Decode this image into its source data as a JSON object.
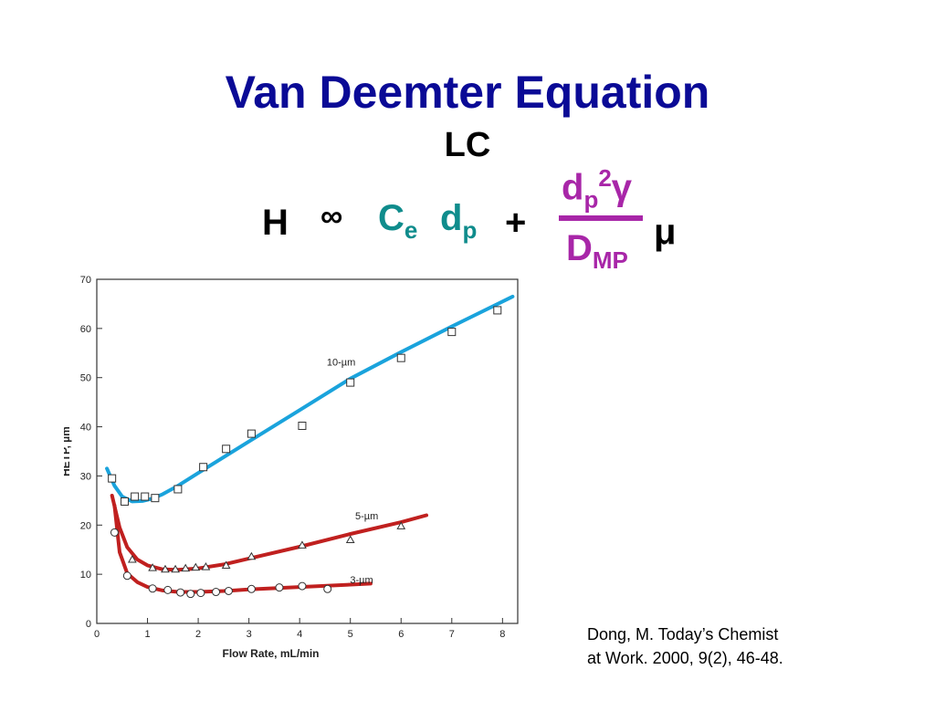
{
  "slide": {
    "title": "Van Deemter Equation",
    "subtitle": "LC",
    "equation": {
      "H": "H",
      "prop": "∞",
      "C": "C",
      "C_sub": "e",
      "d": "d",
      "d_sub": "p",
      "plus": "+",
      "num_d": "d",
      "num_sub": "p",
      "num_sup": "2",
      "num_gamma": "γ",
      "den_D": "D",
      "den_sub": "MP",
      "mu": "μ"
    },
    "citation_line1": "Dong, M.  Today’s Chemist",
    "citation_line2": "at Work. 2000, 9(2), 46-48."
  },
  "colors": {
    "title": "#0a0a96",
    "teal": "#0f8c8c",
    "magenta": "#a826a8",
    "line_10um": "#1aa3dc",
    "line_5um_3um": "#c0201f"
  },
  "chart_data": {
    "type": "line",
    "xlabel": "Flow Rate, mL/min",
    "ylabel": "HETP, µm",
    "xlim": [
      0,
      8.3
    ],
    "ylim": [
      0,
      70
    ],
    "x_ticks": [
      0,
      1,
      2,
      3,
      4,
      5,
      6,
      7,
      8
    ],
    "y_ticks": [
      0,
      10,
      20,
      30,
      40,
      50,
      60,
      70
    ],
    "grid": false,
    "legend": "inline labels",
    "series": [
      {
        "name": "10-µm",
        "color": "#1aa3dc",
        "marker": "square",
        "points": {
          "x": [
            0.3,
            0.55,
            0.75,
            0.95,
            1.15,
            1.6,
            2.1,
            2.55,
            3.05,
            4.05,
            5.0,
            6.0,
            7.0,
            7.9
          ],
          "y": [
            29.5,
            24.8,
            25.8,
            25.8,
            25.5,
            27.3,
            31.8,
            35.5,
            38.6,
            40.2,
            49.0,
            54.0,
            59.3,
            63.7
          ]
        },
        "curve": {
          "x": [
            0.2,
            0.35,
            0.5,
            0.7,
            0.9,
            1.1,
            1.3,
            1.6,
            2.0,
            3.0,
            4.0,
            5.0,
            6.0,
            7.0,
            8.2
          ],
          "y": [
            31.5,
            28.0,
            25.8,
            24.8,
            24.9,
            25.4,
            26.3,
            28.0,
            30.6,
            37.0,
            43.4,
            49.8,
            55.2,
            60.4,
            66.5
          ]
        }
      },
      {
        "name": "5-µm",
        "color": "#c0201f",
        "marker": "triangle",
        "points": {
          "x": [
            0.7,
            1.1,
            1.35,
            1.55,
            1.75,
            1.95,
            2.15,
            2.55,
            3.05,
            4.05,
            5.0,
            6.0
          ],
          "y": [
            13.0,
            11.3,
            11.0,
            11.0,
            11.2,
            11.4,
            11.5,
            11.8,
            13.6,
            15.9,
            17.0,
            19.8
          ]
        },
        "curve": {
          "x": [
            0.3,
            0.45,
            0.6,
            0.8,
            1.0,
            1.3,
            1.6,
            2.0,
            2.5,
            3.0,
            4.0,
            5.0,
            6.0,
            6.5
          ],
          "y": [
            26.0,
            19.5,
            15.5,
            13.0,
            11.8,
            11.0,
            10.9,
            11.2,
            12.0,
            13.2,
            15.6,
            18.2,
            20.6,
            22.0
          ]
        }
      },
      {
        "name": "3-µm",
        "color": "#c0201f",
        "marker": "circle",
        "points": {
          "x": [
            0.35,
            0.6,
            1.1,
            1.4,
            1.65,
            1.85,
            2.05,
            2.35,
            2.6,
            3.05,
            3.6,
            4.05,
            4.55
          ],
          "y": [
            18.5,
            9.7,
            7.1,
            6.8,
            6.3,
            6.0,
            6.2,
            6.4,
            6.6,
            7.0,
            7.3,
            7.6,
            7.0
          ]
        },
        "curve": {
          "x": [
            0.35,
            0.45,
            0.6,
            0.8,
            1.0,
            1.3,
            1.6,
            2.0,
            2.5,
            3.0,
            4.0,
            5.0,
            5.4
          ],
          "y": [
            24.0,
            14.5,
            10.2,
            8.4,
            7.4,
            6.7,
            6.4,
            6.4,
            6.6,
            6.9,
            7.4,
            7.9,
            8.1
          ]
        }
      }
    ]
  }
}
